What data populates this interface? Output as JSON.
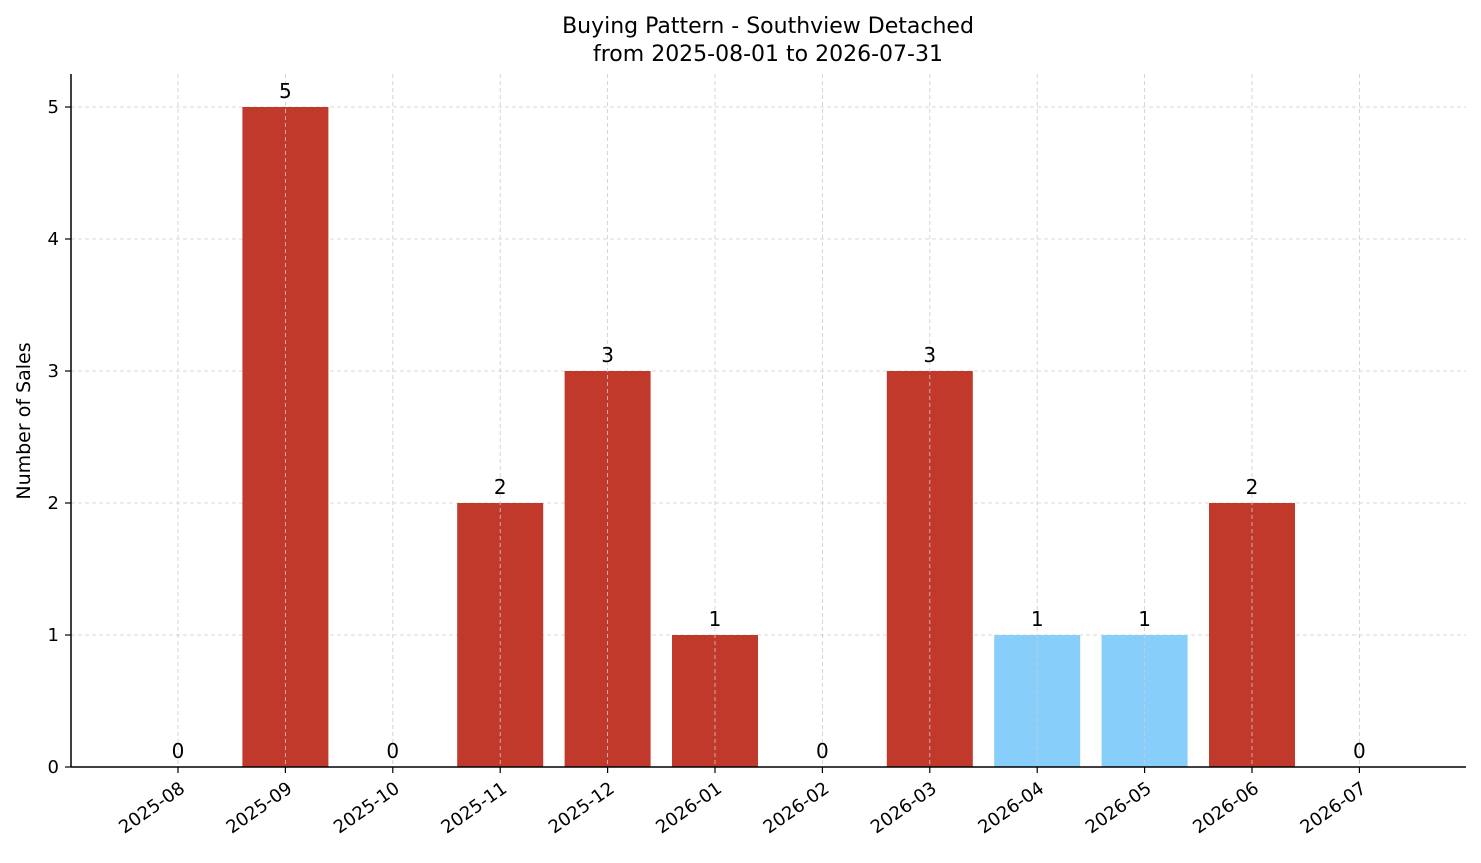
{
  "chart_data": {
    "type": "bar",
    "title": "Buying Pattern - Southview Detached",
    "subtitle": "from 2025-08-01 to 2026-07-31",
    "xlabel": "",
    "ylabel": "Number of Sales",
    "ylim": [
      0,
      5.25
    ],
    "yticks": [
      0,
      1,
      2,
      3,
      4,
      5
    ],
    "grid": true,
    "legend": "none",
    "categories": [
      "2025-08",
      "2025-09",
      "2025-10",
      "2025-11",
      "2025-12",
      "2026-01",
      "2026-02",
      "2026-03",
      "2026-04",
      "2026-05",
      "2026-06",
      "2026-07"
    ],
    "values": [
      0,
      5,
      0,
      2,
      3,
      1,
      0,
      3,
      1,
      1,
      2,
      0
    ],
    "bar_colors": [
      "#c0392b",
      "#c0392b",
      "#c0392b",
      "#c0392b",
      "#c0392b",
      "#c0392b",
      "#c0392b",
      "#c0392b",
      "#87cefa",
      "#87cefa",
      "#c0392b",
      "#c0392b"
    ]
  }
}
